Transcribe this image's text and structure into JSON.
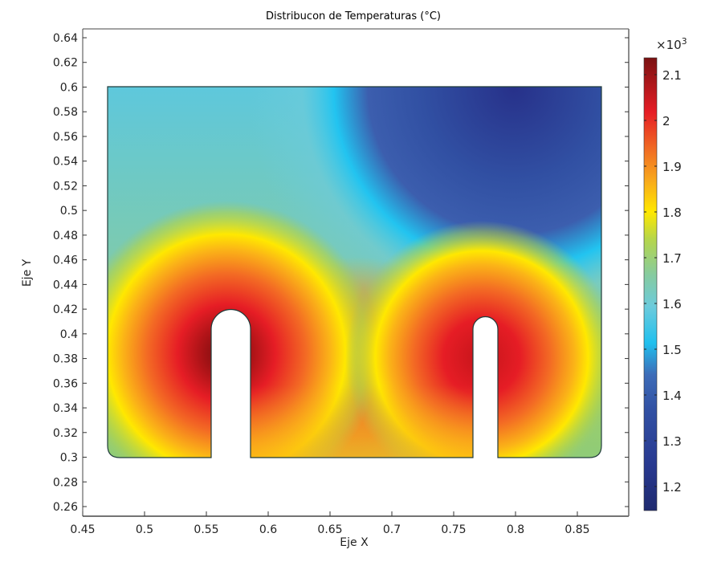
{
  "chart_data": {
    "type": "heatmap",
    "title": "Distribucon de Temperaturas  (°C)",
    "xlabel": "Eje X",
    "ylabel": "Eje Y",
    "xlim": [
      0.45,
      0.89
    ],
    "ylim": [
      0.255,
      0.645
    ],
    "grid": false,
    "x_ticks": [
      "0.45",
      "0.5",
      "0.55",
      "0.6",
      "0.65",
      "0.7",
      "0.75",
      "0.8",
      "0.85"
    ],
    "y_ticks": [
      "0.26",
      "0.28",
      "0.3",
      "0.32",
      "0.34",
      "0.36",
      "0.38",
      "0.4",
      "0.42",
      "0.44",
      "0.46",
      "0.48",
      "0.5",
      "0.52",
      "0.54",
      "0.56",
      "0.58",
      "0.6",
      "0.62",
      "0.64"
    ],
    "colorbar": {
      "multiplier": "×10",
      "exponent": "3",
      "ticks": [
        "2.1",
        "2",
        "1.9",
        "1.8",
        "1.7",
        "1.6",
        "1.5",
        "1.4",
        "1.3",
        "1.2"
      ],
      "range": [
        1.15,
        2.13
      ],
      "colormap": [
        "#1f2a7a",
        "#2d3f99",
        "#3b57aa",
        "#21c4f0",
        "#6ccbdc",
        "#9ccd6a",
        "#e6e22a",
        "#ffe800",
        "#f7a020",
        "#f06030",
        "#e61d25",
        "#7a1010"
      ]
    },
    "domain_geometry": {
      "x_range": [
        0.47,
        0.87
      ],
      "y_range": [
        0.3,
        0.6
      ],
      "bottom_corner_radius": 0.01,
      "slots": [
        {
          "x_left": 0.555,
          "x_right": 0.585,
          "y_bottom": 0.3,
          "y_top": 0.415,
          "top": "rounded"
        },
        {
          "x_left": 0.755,
          "x_right": 0.785,
          "y_bottom": 0.3,
          "y_top": 0.415,
          "top": "rounded"
        }
      ]
    },
    "field_summary": {
      "max_approx": 2130,
      "min_approx": 1150,
      "hot_zone": "around both slots (max near left slot, ~2100 °C), central region ~1950 °C",
      "cold_zone": "upper right region near y=0.6, x 0.65–0.87 (~1150–1250 °C)",
      "isotherm_1500": "runs from (0.57, 0.60) diagonally down to (0.87, 0.33)"
    }
  }
}
